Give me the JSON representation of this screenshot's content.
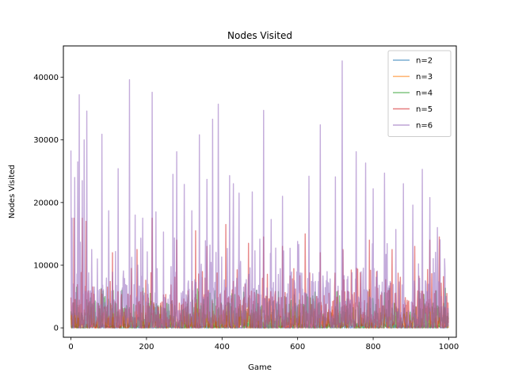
{
  "chart_data": {
    "type": "line",
    "title": "Nodes Visited",
    "xlabel": "Game",
    "ylabel": "Nodes Visited",
    "xlim": [
      -20,
      1020
    ],
    "ylim": [
      -1500,
      45000
    ],
    "xticks": [
      0,
      200,
      400,
      600,
      800,
      1000
    ],
    "yticks": [
      0,
      10000,
      20000,
      30000,
      40000
    ],
    "grid": false,
    "legend_position": "top-right",
    "num_games": 1000,
    "series": [
      {
        "name": "n=2",
        "color": "#1f77b4",
        "typical_range": [
          0,
          500
        ],
        "spikes": [
          [
            5,
            900
          ],
          [
            60,
            700
          ],
          [
            200,
            800
          ],
          [
            420,
            600
          ],
          [
            700,
            750
          ],
          [
            900,
            650
          ]
        ]
      },
      {
        "name": "n=3",
        "color": "#ff7f0e",
        "typical_range": [
          0,
          2500
        ],
        "spikes": [
          [
            10,
            4500
          ],
          [
            45,
            3500
          ],
          [
            180,
            4200
          ],
          [
            330,
            3800
          ],
          [
            520,
            4000
          ],
          [
            760,
            3500
          ],
          [
            950,
            3200
          ]
        ]
      },
      {
        "name": "n=4",
        "color": "#2ca02c",
        "typical_range": [
          0,
          4000
        ],
        "spikes": [
          [
            15,
            6500
          ],
          [
            90,
            5000
          ],
          [
            210,
            5500
          ],
          [
            310,
            5200
          ],
          [
            470,
            4800
          ],
          [
            640,
            5100
          ],
          [
            830,
            5600
          ]
        ]
      },
      {
        "name": "n=5",
        "color": "#d62728",
        "typical_range": [
          0,
          6000
        ],
        "spikes": [
          [
            8,
            17500
          ],
          [
            30,
            17500
          ],
          [
            40,
            17000
          ],
          [
            110,
            12000
          ],
          [
            175,
            12500
          ],
          [
            215,
            17500
          ],
          [
            280,
            14000
          ],
          [
            330,
            15500
          ],
          [
            360,
            13000
          ],
          [
            410,
            16500
          ],
          [
            470,
            13500
          ],
          [
            510,
            14500
          ],
          [
            560,
            13000
          ],
          [
            620,
            15000
          ],
          [
            660,
            12000
          ],
          [
            720,
            12500
          ],
          [
            790,
            14000
          ],
          [
            850,
            12500
          ],
          [
            910,
            13000
          ],
          [
            950,
            14000
          ],
          [
            975,
            14500
          ]
        ]
      },
      {
        "name": "n=6",
        "color": "#9467bd",
        "typical_range": [
          0,
          9000
        ],
        "spikes": [
          [
            0,
            28300
          ],
          [
            3,
            17500
          ],
          [
            10,
            24000
          ],
          [
            18,
            26500
          ],
          [
            22,
            37200
          ],
          [
            30,
            23500
          ],
          [
            35,
            30000
          ],
          [
            42,
            34600
          ],
          [
            55,
            12500
          ],
          [
            82,
            30900
          ],
          [
            100,
            18700
          ],
          [
            125,
            25400
          ],
          [
            155,
            39600
          ],
          [
            170,
            18000
          ],
          [
            190,
            17500
          ],
          [
            215,
            37600
          ],
          [
            225,
            18500
          ],
          [
            245,
            15300
          ],
          [
            270,
            24500
          ],
          [
            280,
            28100
          ],
          [
            300,
            22900
          ],
          [
            320,
            18700
          ],
          [
            340,
            30800
          ],
          [
            360,
            23700
          ],
          [
            375,
            33300
          ],
          [
            390,
            35700
          ],
          [
            420,
            24300
          ],
          [
            430,
            23000
          ],
          [
            445,
            21500
          ],
          [
            480,
            21700
          ],
          [
            510,
            34700
          ],
          [
            530,
            17300
          ],
          [
            560,
            21000
          ],
          [
            580,
            12700
          ],
          [
            600,
            13800
          ],
          [
            630,
            24200
          ],
          [
            660,
            32400
          ],
          [
            700,
            24100
          ],
          [
            718,
            42600
          ],
          [
            755,
            28100
          ],
          [
            780,
            26300
          ],
          [
            800,
            22200
          ],
          [
            830,
            24700
          ],
          [
            860,
            15700
          ],
          [
            880,
            23000
          ],
          [
            905,
            19600
          ],
          [
            930,
            25300
          ],
          [
            950,
            20800
          ],
          [
            970,
            16000
          ],
          [
            990,
            9200
          ]
        ]
      }
    ]
  }
}
